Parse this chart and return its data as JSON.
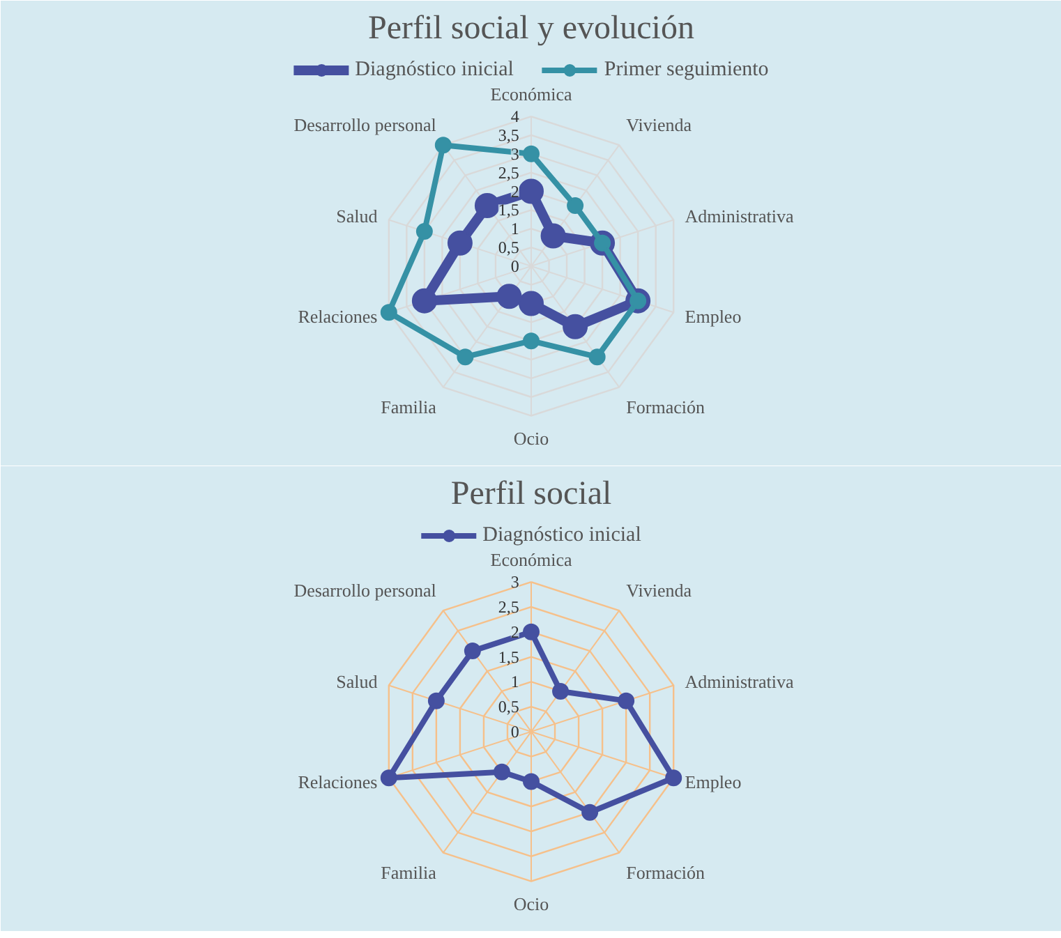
{
  "chart_data": [
    {
      "type": "radar",
      "title": "Perfil social y evolución",
      "categories": [
        "Económica",
        "Vivienda",
        "Administrativa",
        "Empleo",
        "Formación",
        "Ocio",
        "Familia",
        "Relaciones",
        "Salud",
        "Desarrollo personal"
      ],
      "series": [
        {
          "name": "Diagnóstico inicial",
          "color": "#4550a0",
          "values": [
            2,
            1,
            2,
            3,
            2,
            1,
            1,
            3,
            2,
            2
          ]
        },
        {
          "name": "Primer seguimiento",
          "color": "#3591a5",
          "values": [
            3,
            2,
            2,
            3,
            3,
            2,
            3,
            4,
            3,
            4
          ]
        }
      ],
      "ylim": [
        0,
        4
      ],
      "yticks": [
        0,
        {
          "value": 0.5,
          "label": "0,5"
        },
        1,
        {
          "value": 1.5,
          "label": "1,5"
        },
        2,
        {
          "value": 2.5,
          "label": "2,5"
        },
        3,
        {
          "value": 3.5,
          "label": "3,5"
        },
        4
      ],
      "grid": true,
      "legend": "top",
      "marker": "circle"
    },
    {
      "type": "radar",
      "title": "Perfil social",
      "categories": [
        "Económica",
        "Vivienda",
        "Administrativa",
        "Empleo",
        "Formación",
        "Ocio",
        "Familia",
        "Relaciones",
        "Salud",
        "Desarrollo personal"
      ],
      "series": [
        {
          "name": "Diagnóstico inicial",
          "color": "#4550a0",
          "values": [
            2,
            1,
            2,
            3,
            2,
            1,
            1,
            3,
            2,
            2
          ]
        }
      ],
      "ylim": [
        0,
        3
      ],
      "yticks": [
        0,
        {
          "value": 0.5,
          "label": "0,5"
        },
        1,
        {
          "value": 1.5,
          "label": "1,5"
        },
        2,
        {
          "value": 2.5,
          "label": "2,5"
        },
        3
      ],
      "grid": true,
      "legend": "top",
      "marker": "circle"
    }
  ]
}
